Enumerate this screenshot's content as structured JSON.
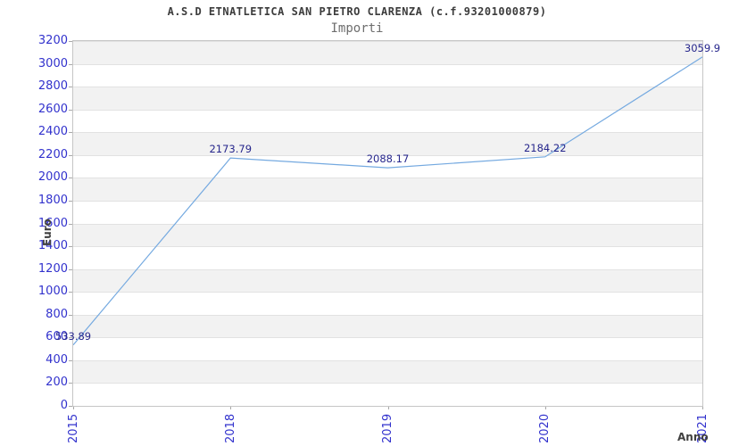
{
  "chart_data": {
    "type": "line",
    "title": "A.S.D ETNATLETICA SAN PIETRO CLARENZA (c.f.93201000879)",
    "subtitle": "Importi",
    "xlabel": "Anno",
    "ylabel": "Euro",
    "categories": [
      "2015",
      "2018",
      "2019",
      "2020",
      "2021"
    ],
    "series": [
      {
        "name": "Importi",
        "values": [
          533.89,
          2173.79,
          2088.17,
          2184.22,
          3059.9
        ]
      }
    ],
    "point_labels": [
      "533.89",
      "2173.79",
      "2088.17",
      "2184.22",
      "3059.9"
    ],
    "ylim": [
      0,
      3200
    ],
    "ytick_step": 200,
    "grid": "horizontal-bands-alternating",
    "legend": "none",
    "colors": {
      "line": "#74a9e0",
      "band_main": "#ffffff",
      "band_alt": "#f2f2f2",
      "gridline": "#e2e2e2",
      "plot_border": "#c6c6c6",
      "tick": "#a8a8a8",
      "axis_tick_label": "#3232cd",
      "point_label": "#26268c",
      "title": "#3c3c3c",
      "subtitle": "#6e6e6e",
      "axis_title": "#404040"
    }
  }
}
